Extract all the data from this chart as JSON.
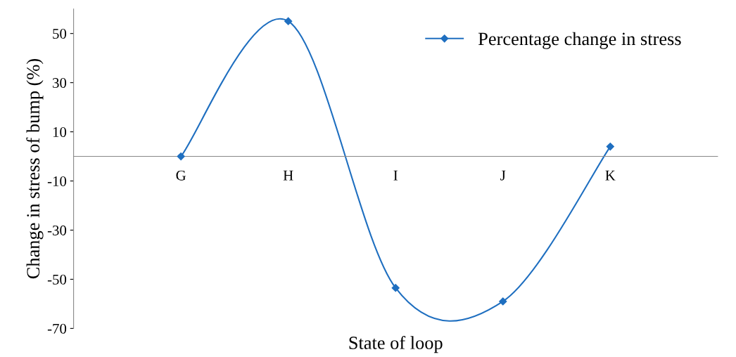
{
  "chart_data": {
    "type": "line",
    "xlabel": "State of loop",
    "ylabel": "Change in stress of bump (%)",
    "categories": [
      null,
      "G",
      "H",
      "I",
      "J",
      "K",
      null
    ],
    "series": [
      {
        "name": "Percentage change in stress",
        "color": "#1f6fc0",
        "values": [
          null,
          0,
          55,
          -53.5,
          -59,
          4,
          null
        ]
      }
    ],
    "ylim": [
      -70,
      60
    ],
    "yticks": [
      -70,
      -50,
      -30,
      -10,
      10,
      30,
      50
    ],
    "grid": false,
    "legend": "top right",
    "marker": "diamond",
    "line_style": "solid"
  }
}
